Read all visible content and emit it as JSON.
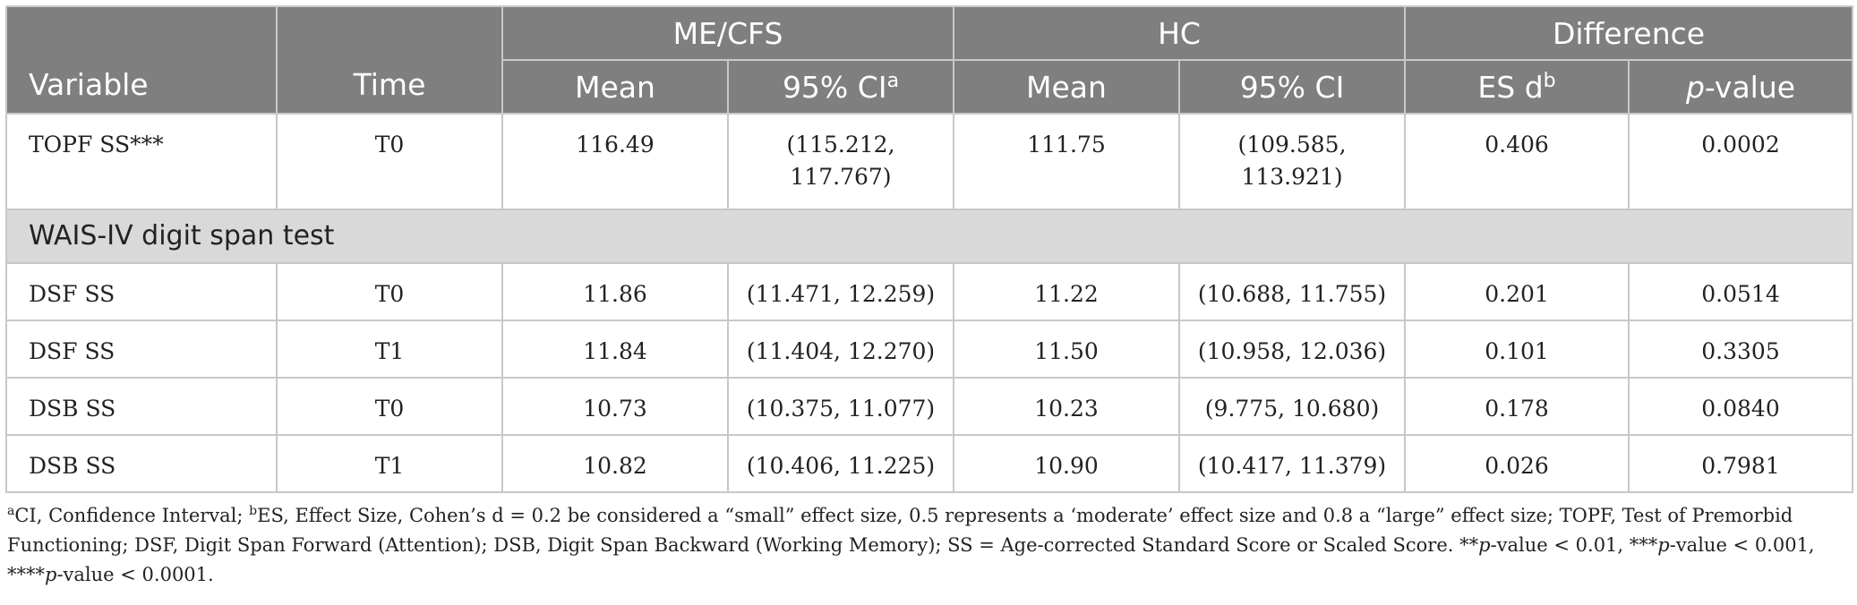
{
  "table": {
    "header": {
      "variable": "Variable",
      "time": "Time",
      "group_mecfs": "ME/CFS",
      "group_hc": "HC",
      "group_diff": "Difference",
      "mean": "Mean",
      "ci_label": "95% CI",
      "ci_sup": "a",
      "ci_plain": "95% CI",
      "es_label": "ES d",
      "es_sup": "b",
      "p_italic": "p",
      "p_suffix": "-value"
    },
    "topf_row": {
      "variable": "TOPF SS***",
      "time": "T0",
      "mecfs_mean": "116.49",
      "mecfs_ci_line1": "(115.212,",
      "mecfs_ci_line2": "117.767)",
      "hc_mean": "111.75",
      "hc_ci_line1": "(109.585,",
      "hc_ci_line2": "113.921)",
      "es": "0.406",
      "p": "0.0002"
    },
    "section_label": "WAIS-IV digit span test",
    "rows": [
      {
        "variable": "DSF SS",
        "time": "T0",
        "mecfs_mean": "11.86",
        "mecfs_ci": "(11.471, 12.259)",
        "hc_mean": "11.22",
        "hc_ci": "(10.688, 11.755)",
        "es": "0.201",
        "p": "0.0514"
      },
      {
        "variable": "DSF SS",
        "time": "T1",
        "mecfs_mean": "11.84",
        "mecfs_ci": "(11.404, 12.270)",
        "hc_mean": "11.50",
        "hc_ci": "(10.958, 12.036)",
        "es": "0.101",
        "p": "0.3305"
      },
      {
        "variable": "DSB SS",
        "time": "T0",
        "mecfs_mean": "10.73",
        "mecfs_ci": "(10.375, 11.077)",
        "hc_mean": "10.23",
        "hc_ci": "(9.775, 10.680)",
        "es": "0.178",
        "p": "0.0840"
      },
      {
        "variable": "DSB SS",
        "time": "T1",
        "mecfs_mean": "10.82",
        "mecfs_ci": "(10.406, 11.225)",
        "hc_mean": "10.90",
        "hc_ci": "(10.417, 11.379)",
        "es": "0.026",
        "p": "0.7981"
      }
    ]
  },
  "footnote": {
    "sup_a": "a",
    "text_a": "CI, Confidence Interval; ",
    "sup_b": "b",
    "text_b": "ES, Effect Size, Cohen’s d = 0.2 be considered a “small” effect size, 0.5 represents a ‘moderate’ effect size and 0.8 a “large” effect size; TOPF, Test of Premorbid Functioning; DSF, Digit Span Forward (Attention); DSB, Digit Span Backward (Working Memory); SS = Age-corrected Standard Score or Scaled Score. **",
    "p1": "p",
    "text_c": "-value < 0.01, ***",
    "p2": "p",
    "text_d": "-value < 0.001, ****",
    "p3": "p",
    "text_e": "-value < 0.0001."
  }
}
